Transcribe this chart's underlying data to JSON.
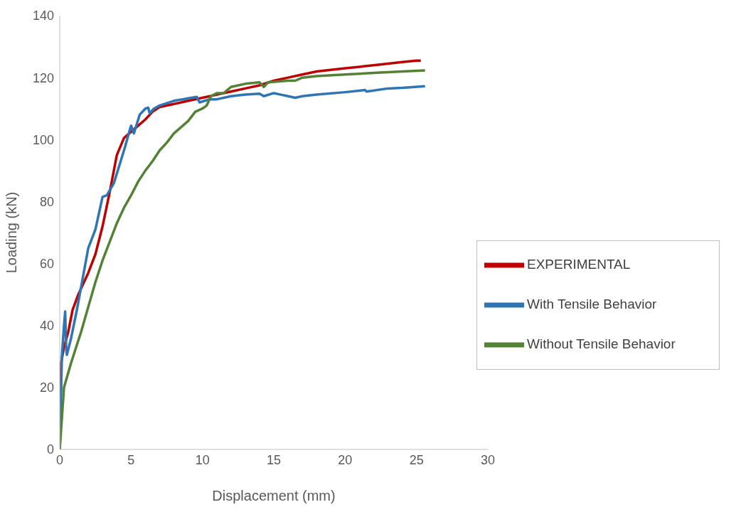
{
  "chart_data": {
    "type": "line",
    "xlabel": "Displacement (mm)",
    "ylabel": "Loading (kN)",
    "xlim": [
      0,
      30
    ],
    "xticks": [
      0,
      5,
      10,
      15,
      20,
      25,
      30
    ],
    "ylim": [
      0,
      140
    ],
    "yticks": [
      0,
      20,
      40,
      60,
      80,
      100,
      120,
      140
    ],
    "grid": false,
    "legend": "right",
    "marker": "none",
    "line_style": "solid",
    "series": [
      {
        "name": "EXPERIMENTAL",
        "color": "#c00000",
        "x": [
          0,
          0.1,
          0.3,
          0.6,
          0.9,
          1.3,
          2,
          2.5,
          3,
          3.5,
          4,
          4.5,
          5,
          5.5,
          6,
          6.5,
          7,
          8,
          9,
          10,
          11,
          12,
          13,
          14,
          15,
          16,
          17,
          18,
          19,
          20,
          21,
          22,
          23,
          24,
          25,
          25.3
        ],
        "values": [
          0,
          28,
          33,
          38,
          45,
          50,
          57,
          63,
          72,
          83,
          95,
          100.5,
          102.5,
          104.5,
          106.5,
          109,
          110.5,
          111.5,
          112.5,
          113.5,
          114.5,
          115.5,
          116.5,
          117.5,
          119,
          120,
          121,
          122,
          122.5,
          123,
          123.5,
          124,
          124.5,
          125,
          125.5,
          125.5
        ]
      },
      {
        "name": "With Tensile Behavior",
        "color": "#2e75b6",
        "x": [
          0,
          0.15,
          0.3,
          0.38,
          0.45,
          0.5,
          0.8,
          1.2,
          1.6,
          2,
          2.5,
          3,
          3.3,
          3.8,
          4.2,
          4.6,
          4.9,
          5,
          5.2,
          5.6,
          6,
          6.2,
          6.3,
          6.6,
          7,
          8,
          9,
          9.6,
          9.8,
          10.5,
          11,
          12,
          13,
          14,
          14.3,
          15,
          15.5,
          16,
          16.5,
          17,
          18,
          20,
          21.4,
          21.5,
          23,
          24,
          25.6
        ],
        "values": [
          0,
          30,
          40,
          44.5,
          33,
          30.5,
          36,
          45,
          55,
          65,
          71,
          81.5,
          82,
          86,
          92,
          98,
          103,
          104.5,
          102,
          108,
          110,
          110.3,
          108.5,
          110,
          111,
          112.5,
          113.3,
          113.8,
          112,
          113,
          113,
          114,
          114.5,
          114.8,
          114,
          115,
          114.5,
          114,
          113.5,
          114,
          114.5,
          115.3,
          116,
          115.5,
          116.5,
          116.7,
          117.2
        ]
      },
      {
        "name": "Without Tensile Behavior",
        "color": "#548235",
        "x": [
          0,
          0.3,
          0.8,
          1.5,
          2,
          2.5,
          3,
          3.5,
          4,
          4.5,
          5,
          5.5,
          6,
          6.5,
          7,
          7.5,
          8,
          8.5,
          9,
          9.5,
          10,
          10.3,
          10.6,
          11,
          11.5,
          12,
          13,
          14,
          14.3,
          14.6,
          16,
          16.5,
          17,
          18,
          20,
          22,
          24,
          25.6
        ],
        "values": [
          0,
          20,
          28,
          38,
          46,
          54,
          61,
          67,
          73,
          78,
          82,
          86.5,
          90,
          93,
          96.5,
          99,
          102,
          104,
          106,
          109,
          110,
          111,
          114,
          115,
          115,
          117,
          118,
          118.5,
          117,
          118.5,
          119,
          119,
          120,
          120.5,
          121,
          121.5,
          122,
          122.3
        ]
      }
    ]
  }
}
